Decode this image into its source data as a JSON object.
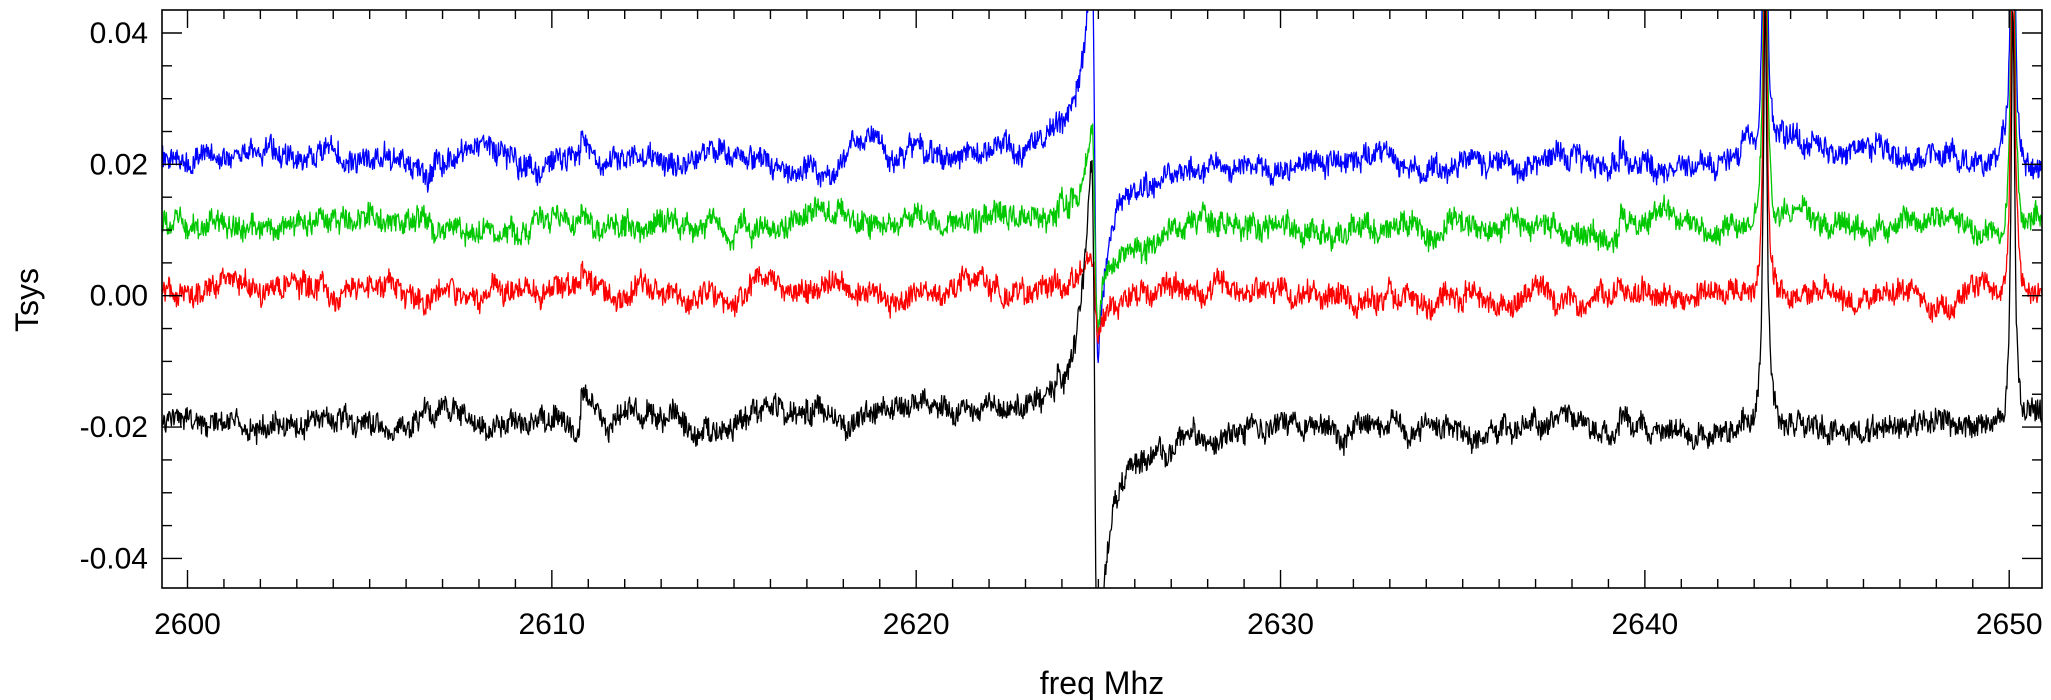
{
  "chart_data": {
    "type": "line",
    "title": "",
    "xlabel": "freq Mhz",
    "ylabel": "Tsys",
    "xlim": [
      2599.3,
      2650.9
    ],
    "ylim": [
      -0.0445,
      0.0435
    ],
    "xticks": [
      2600,
      2610,
      2620,
      2630,
      2640,
      2650
    ],
    "xtick_labels": [
      "2600",
      "2610",
      "2620",
      "2630",
      "2640",
      "2650"
    ],
    "yticks": [
      -0.04,
      -0.02,
      0.0,
      0.02,
      0.04
    ],
    "ytick_labels": [
      "-0.04",
      "-0.02",
      "0.00",
      "0.02",
      "0.04"
    ],
    "grid": false,
    "legend": "none",
    "series": [
      {
        "color": "#0000ff",
        "baseline": 0.021,
        "features": [
          {
            "x": 2610.8,
            "shape": "step",
            "amp": 0.004
          },
          {
            "x": 2624.9,
            "shape": "dispersive",
            "amp": 0.05
          },
          {
            "x": 2639.3,
            "shape": "step",
            "amp": 0.003
          },
          {
            "x": 2643.3,
            "shape": "peak",
            "amp": 0.06
          },
          {
            "x": 2650.1,
            "shape": "peak",
            "amp": 0.06
          }
        ]
      },
      {
        "color": "#00c800",
        "baseline": 0.0105,
        "features": [
          {
            "x": 2610.8,
            "shape": "step",
            "amp": 0.004
          },
          {
            "x": 2624.9,
            "shape": "dispersive",
            "amp": 0.025
          },
          {
            "x": 2639.3,
            "shape": "step",
            "amp": 0.004
          },
          {
            "x": 2643.3,
            "shape": "peak",
            "amp": 0.06
          },
          {
            "x": 2650.1,
            "shape": "peak",
            "amp": 0.06
          }
        ]
      },
      {
        "color": "#ff0000",
        "baseline": 0.0005,
        "features": [
          {
            "x": 2610.8,
            "shape": "step",
            "amp": 0.004
          },
          {
            "x": 2624.9,
            "shape": "dispersive",
            "amp": 0.01
          },
          {
            "x": 2643.3,
            "shape": "peak",
            "amp": 0.06
          },
          {
            "x": 2650.1,
            "shape": "peak",
            "amp": 0.06
          }
        ]
      },
      {
        "color": "#000000",
        "baseline": -0.0195,
        "features": [
          {
            "x": 2610.8,
            "shape": "step",
            "amp": 0.004
          },
          {
            "x": 2624.9,
            "shape": "dispersive",
            "amp": 0.065
          },
          {
            "x": 2639.3,
            "shape": "step",
            "amp": 0.003
          },
          {
            "x": 2643.3,
            "shape": "peak",
            "amp": 0.065
          },
          {
            "x": 2650.1,
            "shape": "peak",
            "amp": 0.065
          }
        ]
      }
    ]
  }
}
